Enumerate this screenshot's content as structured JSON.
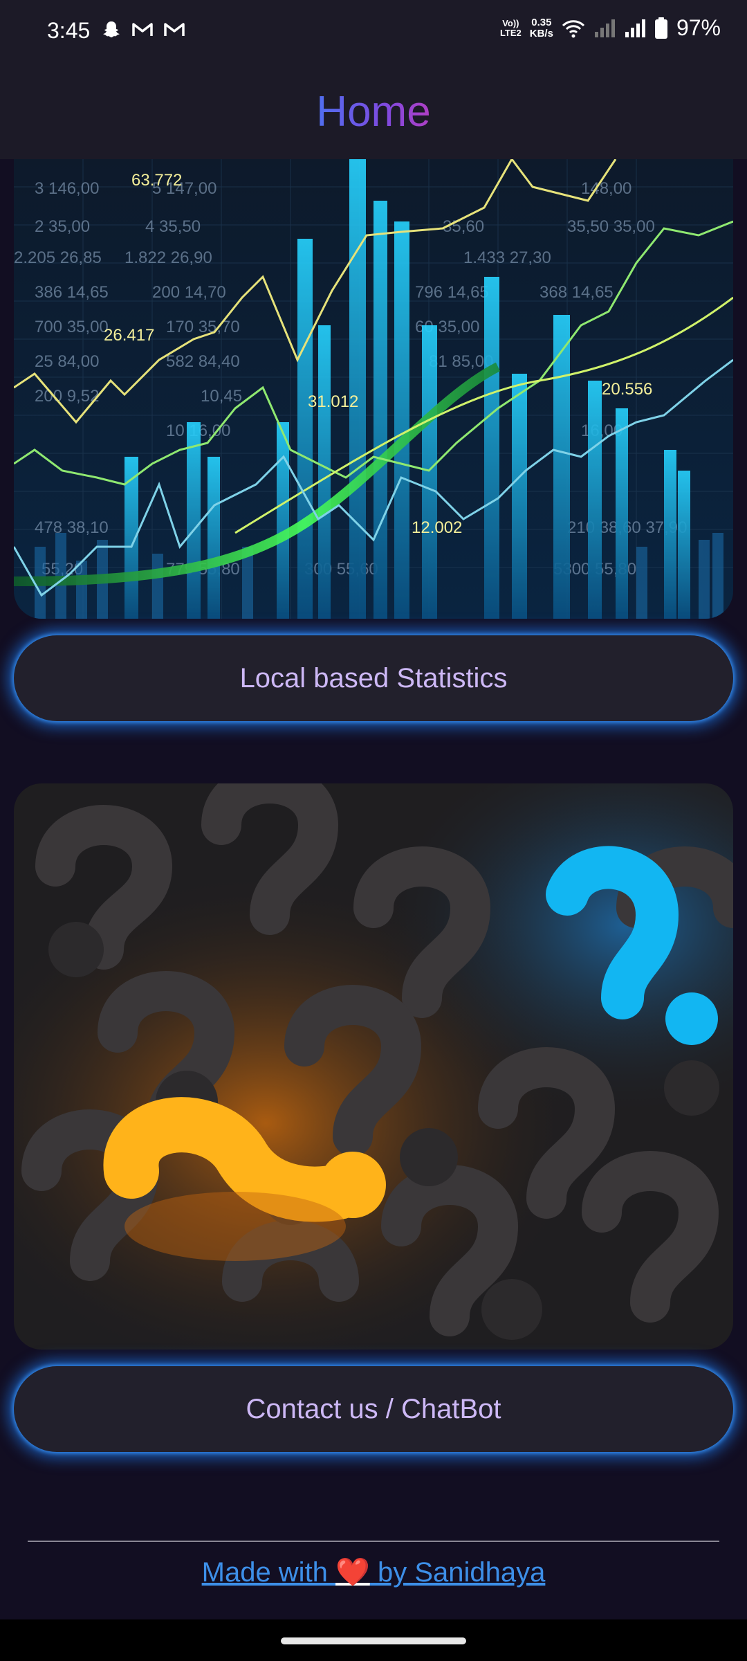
{
  "status_bar": {
    "time": "3:45",
    "notification_icons": [
      "snapchat-icon",
      "gmail-icon",
      "gmail-icon"
    ],
    "volte_label_top": "Vo))",
    "volte_label_bottom": "LTE2",
    "net_speed_value": "0.35",
    "net_speed_unit": "KB/s",
    "battery_percent": "97%"
  },
  "app_bar": {
    "title": "Home"
  },
  "cards": [
    {
      "image": "stock-market-chart-image",
      "image_text": [
        "63.772",
        "26.417",
        "31.012",
        "12.002",
        "20.556"
      ],
      "button_label": "Local based Statistics"
    },
    {
      "image": "question-marks-image",
      "button_label": "Contact us / ChatBot"
    }
  ],
  "footer": {
    "prefix": "Made with ",
    "heart": "❤️",
    "suffix": " by Sanidhaya"
  },
  "colors": {
    "background": "#120e22",
    "bar": "#1c1a27",
    "button": "#22202c",
    "button_text": "#cdb8f6",
    "glow": "#1e82ff",
    "link": "#3d8fe8"
  }
}
